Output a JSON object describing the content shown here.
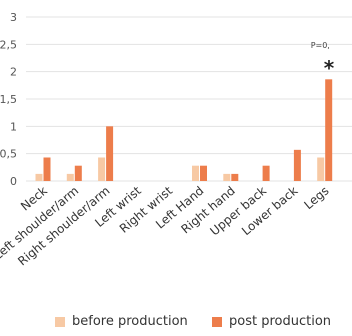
{
  "chart_data": {
    "type": "bar",
    "categories": [
      "Neck",
      "Left shoulder/arm",
      "Right shoulder/arm",
      "Left wrist",
      "Right wrist",
      "Left Hand",
      "Right hand",
      "Upper back",
      "Lower back",
      "Legs"
    ],
    "series": [
      {
        "name": "before production",
        "values": [
          0.13,
          0.13,
          0.43,
          0,
          0,
          0.28,
          0.13,
          0,
          0,
          0.43
        ]
      },
      {
        "name": "post production",
        "values": [
          0.43,
          0.28,
          1.0,
          0,
          0,
          0.28,
          0.13,
          0.28,
          0.57,
          1.86
        ]
      }
    ],
    "colors": {
      "before production": "#f7c9a4",
      "post production": "#ed7d4b"
    },
    "ylim": [
      0,
      3
    ],
    "yticks": [
      "0",
      "0,5",
      "1",
      "1,5",
      "2",
      "2,5",
      "3"
    ],
    "ytick_values": [
      0,
      0.5,
      1,
      1.5,
      2,
      2.5,
      3
    ],
    "grid": true,
    "legend_position": "bottom",
    "annotation": {
      "category": "Legs",
      "text": "P=0,",
      "marker": "*"
    }
  }
}
